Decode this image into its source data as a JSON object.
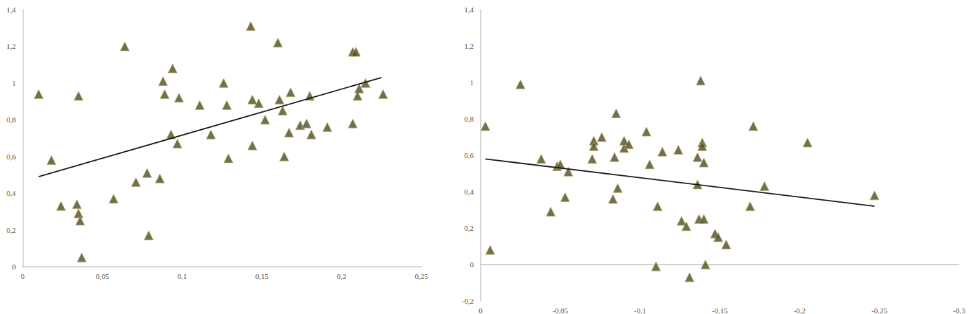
{
  "chart_data": [
    {
      "type": "scatter",
      "marker": "triangle",
      "color": "#4f4b1f",
      "grid": false,
      "x": [
        0.01,
        0.018,
        0.024,
        0.034,
        0.035,
        0.035,
        0.036,
        0.037,
        0.057,
        0.064,
        0.071,
        0.078,
        0.079,
        0.086,
        0.088,
        0.089,
        0.093,
        0.094,
        0.097,
        0.098,
        0.111,
        0.118,
        0.126,
        0.128,
        0.129,
        0.143,
        0.144,
        0.144,
        0.148,
        0.152,
        0.16,
        0.161,
        0.163,
        0.164,
        0.167,
        0.168,
        0.174,
        0.178,
        0.18,
        0.181,
        0.191,
        0.207,
        0.207,
        0.209,
        0.21,
        0.211,
        0.215,
        0.226
      ],
      "y": [
        0.94,
        0.58,
        0.33,
        0.34,
        0.29,
        0.93,
        0.25,
        0.05,
        0.37,
        1.2,
        0.46,
        0.51,
        0.17,
        0.48,
        1.01,
        0.94,
        0.72,
        1.08,
        0.67,
        0.92,
        0.88,
        0.72,
        1.0,
        0.88,
        0.59,
        1.31,
        0.91,
        0.66,
        0.89,
        0.8,
        1.22,
        0.91,
        0.85,
        0.6,
        0.73,
        0.95,
        0.77,
        0.78,
        0.93,
        0.72,
        0.76,
        1.17,
        0.78,
        1.17,
        0.93,
        0.97,
        1.0,
        0.94
      ],
      "trend_line": {
        "x": [
          0.01,
          0.225
        ],
        "y": [
          0.49,
          1.03
        ]
      },
      "xlim": [
        0,
        0.25
      ],
      "xticks": [
        0,
        {
          "value": 0.05,
          "label": "0,05"
        },
        {
          "value": 0.1,
          "label": "0,1"
        },
        {
          "value": 0.15,
          "label": "0,15"
        },
        {
          "value": 0.2,
          "label": "0,2"
        },
        {
          "value": 0.25,
          "label": "0,25"
        }
      ],
      "ylim": [
        0,
        1.4
      ],
      "yticks": [
        0,
        {
          "value": 0.2,
          "label": "0,2"
        },
        {
          "value": 0.4,
          "label": "0,4"
        },
        {
          "value": 0.6,
          "label": "0,6"
        },
        {
          "value": 0.8,
          "label": "0,8"
        },
        1,
        {
          "value": 1.2,
          "label": "1,2"
        },
        {
          "value": 1.4,
          "label": "1,4"
        }
      ]
    },
    {
      "type": "scatter",
      "marker": "triangle",
      "color": "#4f4b1f",
      "grid": false,
      "x": [
        -0.003,
        -0.006,
        -0.025,
        -0.038,
        -0.044,
        -0.048,
        -0.05,
        -0.053,
        -0.055,
        -0.07,
        -0.071,
        -0.071,
        -0.076,
        -0.083,
        -0.084,
        -0.085,
        -0.086,
        -0.09,
        -0.09,
        -0.093,
        -0.104,
        -0.106,
        -0.11,
        -0.111,
        -0.114,
        -0.124,
        -0.126,
        -0.129,
        -0.131,
        -0.136,
        -0.136,
        -0.137,
        -0.138,
        -0.139,
        -0.139,
        -0.14,
        -0.14,
        -0.141,
        -0.147,
        -0.149,
        -0.154,
        -0.169,
        -0.171,
        -0.178,
        -0.205,
        -0.247
      ],
      "y": [
        0.76,
        0.08,
        0.99,
        0.58,
        0.29,
        0.54,
        0.55,
        0.37,
        0.51,
        0.58,
        0.68,
        0.65,
        0.7,
        0.36,
        0.59,
        0.83,
        0.42,
        0.64,
        0.68,
        0.66,
        0.73,
        0.55,
        -0.01,
        0.32,
        0.62,
        0.63,
        0.24,
        0.21,
        -0.07,
        0.44,
        0.59,
        0.25,
        1.01,
        0.67,
        0.65,
        0.25,
        0.56,
        0.0,
        0.17,
        0.15,
        0.11,
        0.32,
        0.76,
        0.43,
        0.67,
        0.38
      ],
      "trend_line": {
        "x": [
          -0.003,
          -0.247
        ],
        "y": [
          0.58,
          0.32
        ]
      },
      "xlim": [
        0,
        -0.3
      ],
      "xticks": [
        0,
        {
          "value": -0.05,
          "label": "-0,05"
        },
        {
          "value": -0.1,
          "label": "-0,1"
        },
        {
          "value": -0.15,
          "label": "-0,15"
        },
        {
          "value": -0.2,
          "label": "-0,2"
        },
        {
          "value": -0.25,
          "label": "-0,25"
        },
        {
          "value": -0.3,
          "label": "-0,3"
        }
      ],
      "ylim": [
        -0.2,
        1.4
      ],
      "yticks": [
        {
          "value": -0.2,
          "label": "-0,2"
        },
        0,
        {
          "value": 0.2,
          "label": "0,2"
        },
        {
          "value": 0.4,
          "label": "0,4"
        },
        {
          "value": 0.6,
          "label": "0,6"
        },
        {
          "value": 0.8,
          "label": "0,8"
        },
        1,
        {
          "value": 1.2,
          "label": "1,2"
        },
        {
          "value": 1.4,
          "label": "1,4"
        }
      ]
    }
  ]
}
